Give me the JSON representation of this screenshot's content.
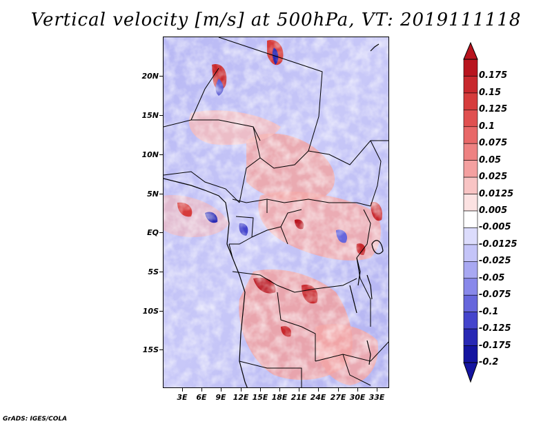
{
  "title": "Vertical velocity [m/s] at 500hPa, VT: 2019111118",
  "credit": "GrADS: IGES/COLA",
  "map": {
    "lon_range": [
      0,
      35
    ],
    "lat_range": [
      -20,
      25
    ],
    "lat_labels": [
      "20N",
      "15N",
      "10N",
      "5N",
      "EQ",
      "5S",
      "10S",
      "15S"
    ],
    "lat_values": [
      20,
      15,
      10,
      5,
      0,
      -5,
      -10,
      -15
    ],
    "lon_labels": [
      "3E",
      "6E",
      "9E",
      "12E",
      "15E",
      "18E",
      "21E",
      "24E",
      "27E",
      "30E",
      "33E"
    ],
    "lon_values": [
      3,
      6,
      9,
      12,
      15,
      18,
      21,
      24,
      27,
      30,
      33
    ]
  },
  "colorbar": {
    "labels": [
      "0.175",
      "0.15",
      "0.125",
      "0.1",
      "0.075",
      "0.05",
      "0.025",
      "0.0125",
      "0.005",
      "-0.005",
      "-0.0125",
      "-0.025",
      "-0.05",
      "-0.075",
      "-0.1",
      "-0.125",
      "-0.175",
      "-0.2"
    ],
    "colors": [
      "#b8141e",
      "#c8282d",
      "#d63c3c",
      "#e05050",
      "#e86868",
      "#ee8282",
      "#f4a0a0",
      "#f8c4c4",
      "#fce2e2",
      "#ffffff",
      "#dcdcfc",
      "#c4c4f8",
      "#a8a8f2",
      "#8888ea",
      "#6666dc",
      "#4444cc",
      "#2828b4",
      "#1414a0"
    ]
  }
}
